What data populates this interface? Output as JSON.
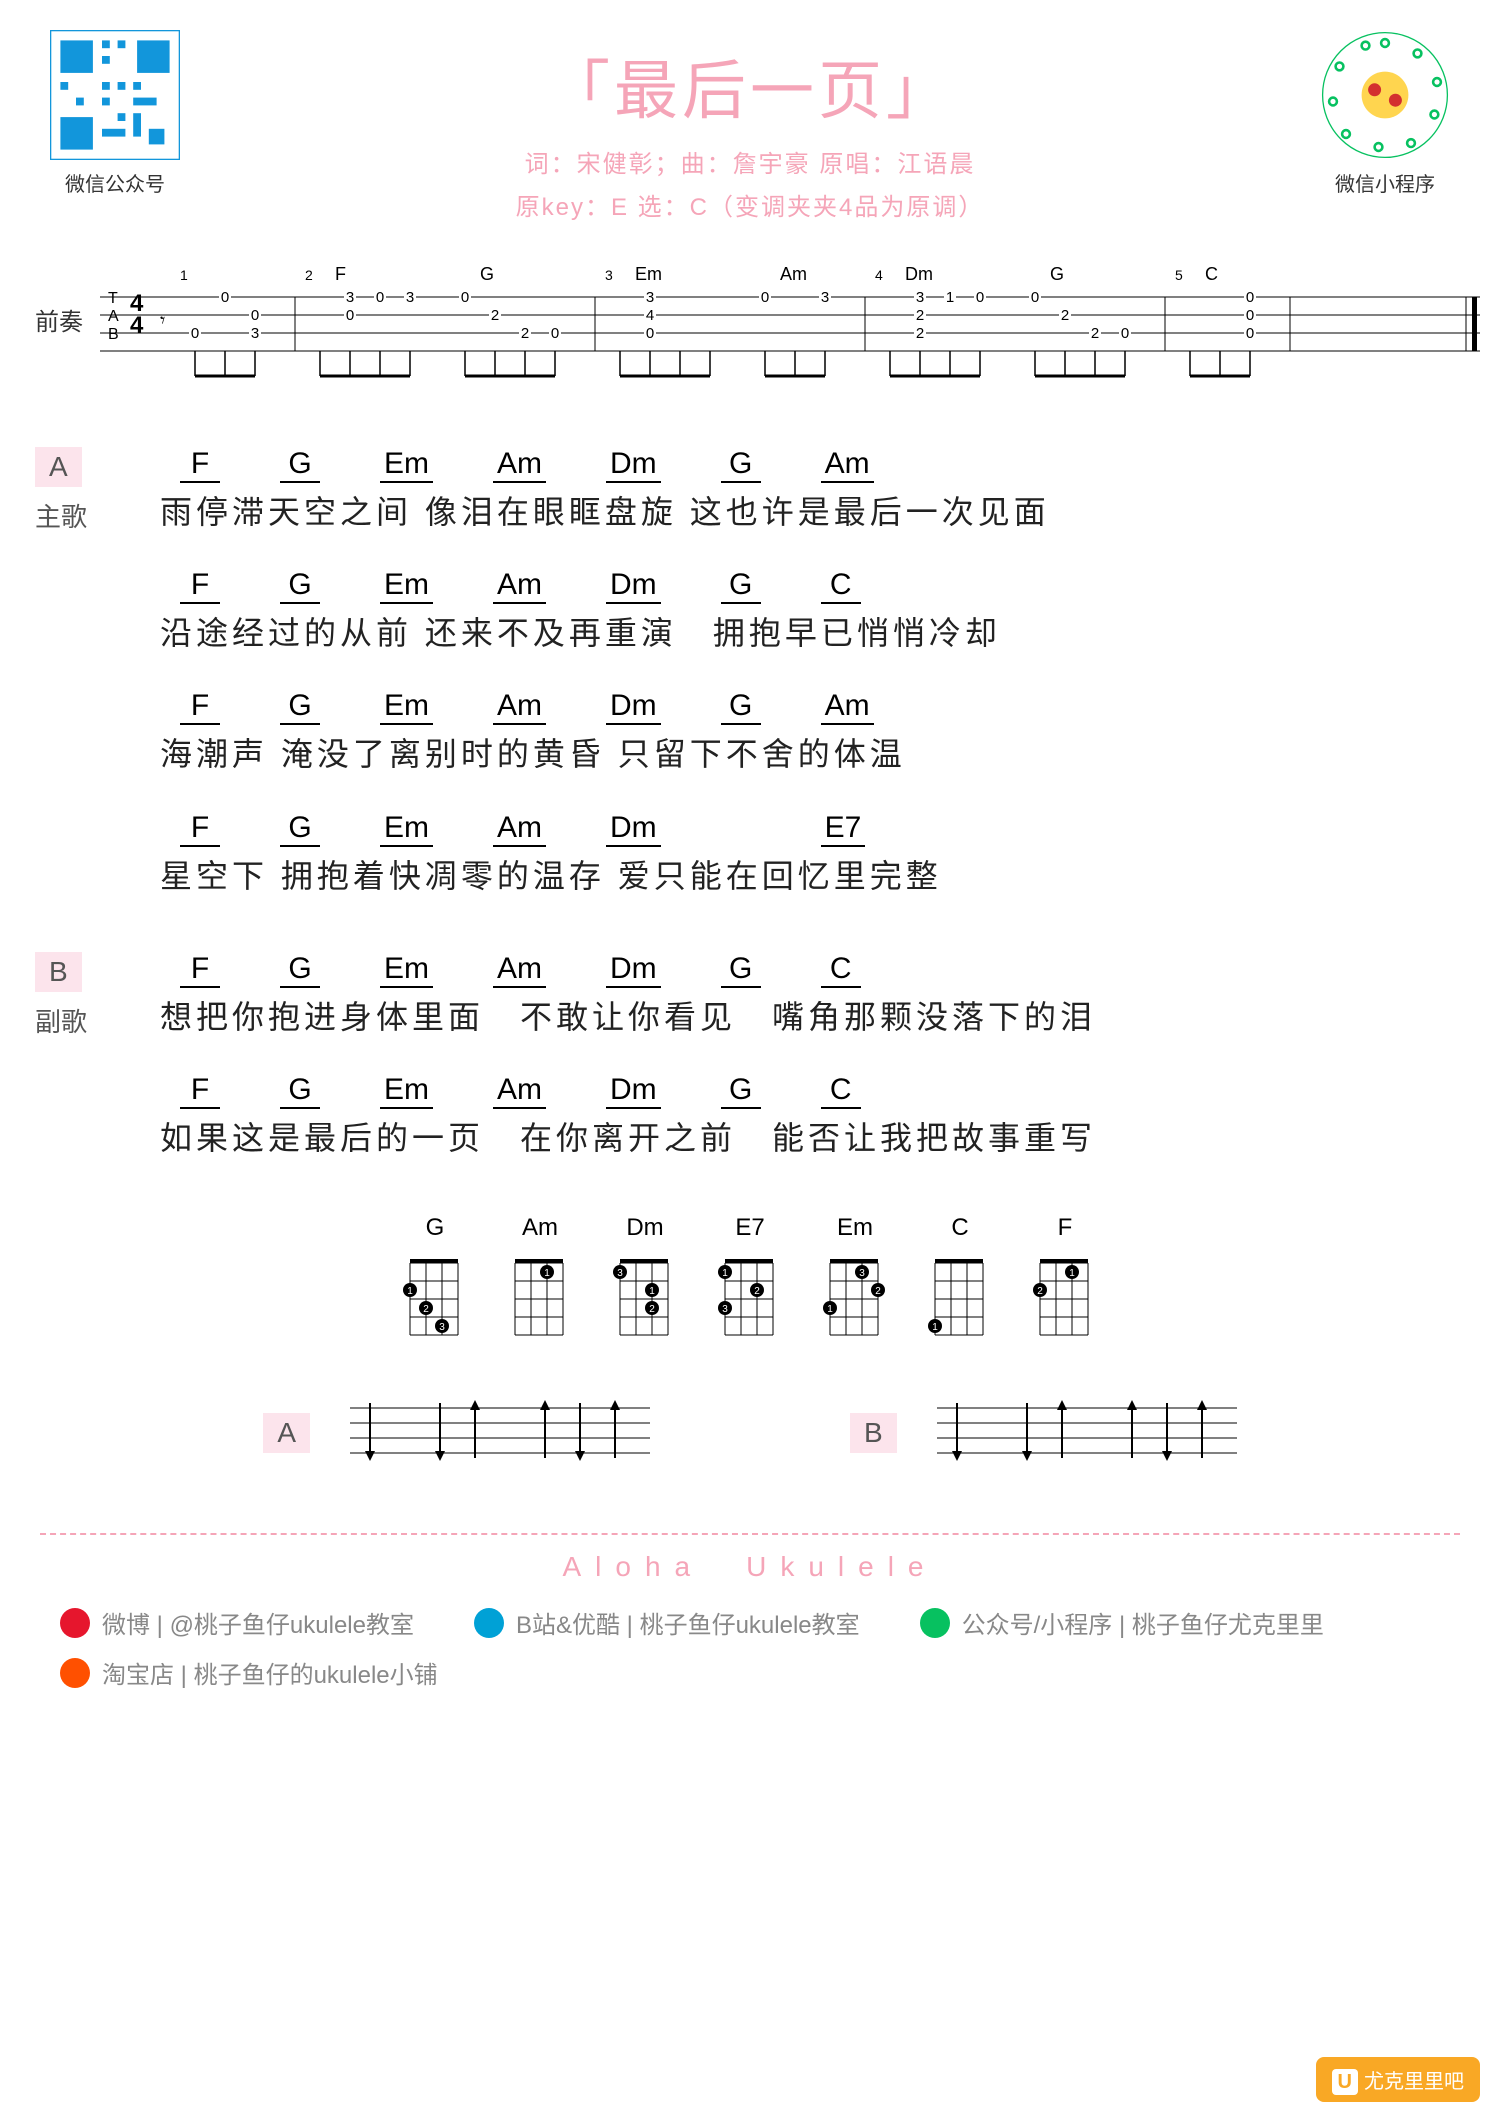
{
  "header": {
    "title": "「最后一页」",
    "credits": "词：宋健彰；曲：詹宇豪 原唱：江语晨",
    "key_info": "原key：E 选：C（变调夹夹4品为原调）",
    "left_qr_label": "微信公众号",
    "right_qr_label": "微信小程序"
  },
  "intro": {
    "label": "前奏",
    "chord_labels": [
      "F",
      "G",
      "Em",
      "Am",
      "Dm",
      "G",
      "C"
    ],
    "measures": [
      {
        "n": "1",
        "frets": [
          [
            "",
            "0",
            ""
          ],
          [
            "",
            "",
            "0"
          ],
          [
            "0",
            "",
            "3"
          ]
        ]
      },
      {
        "n": "2",
        "chord": "F",
        "frets": [
          [
            "",
            "3",
            "0",
            "3"
          ],
          [
            "",
            "0",
            "",
            ""
          ],
          [
            "",
            "",
            "",
            ""
          ]
        ]
      },
      {
        "n": "",
        "chord": "G",
        "frets": [
          [
            "0",
            "",
            "",
            ""
          ],
          [
            "",
            "2",
            "",
            ""
          ],
          [
            "",
            "",
            "2",
            "0"
          ]
        ]
      },
      {
        "n": "3",
        "chord": "Em",
        "frets": [
          [
            "",
            "3",
            "",
            ""
          ],
          [
            "",
            "4",
            "",
            ""
          ],
          [
            "",
            "0",
            "",
            ""
          ]
        ]
      },
      {
        "n": "",
        "chord": "Am",
        "frets": [
          [
            "0",
            "",
            "3"
          ],
          [
            "",
            "",
            ""
          ],
          [
            "",
            "",
            ""
          ]
        ]
      },
      {
        "n": "4",
        "chord": "Dm",
        "frets": [
          [
            "",
            "3",
            "1",
            "0"
          ],
          [
            "",
            "2",
            "",
            ""
          ],
          [
            "",
            "2",
            "",
            ""
          ]
        ]
      },
      {
        "n": "",
        "chord": "G",
        "frets": [
          [
            "0",
            "",
            "",
            ""
          ],
          [
            "",
            "2",
            "",
            ""
          ],
          [
            "",
            "",
            "2",
            "0"
          ]
        ]
      },
      {
        "n": "5",
        "chord": "C",
        "frets": [
          [
            "",
            "",
            "0"
          ],
          [
            "",
            "",
            "0"
          ],
          [
            "",
            "",
            "0"
          ]
        ]
      }
    ]
  },
  "sections": [
    {
      "tag": "A",
      "label": "主歌",
      "lines": [
        {
          "chords": [
            "F",
            "G",
            "Em",
            "Am",
            "Dm",
            "G",
            "Am"
          ],
          "lyric": "雨停滞天空之间 像泪在眼眶盘旋 这也许是最后一次见面"
        },
        {
          "chords": [
            "F",
            "G",
            "Em",
            "Am",
            "Dm",
            "G",
            "C"
          ],
          "lyric": "沿途经过的从前 还来不及再重演　拥抱早已悄悄冷却"
        },
        {
          "chords": [
            "F",
            "G",
            "Em",
            "Am",
            "Dm",
            "G",
            "Am"
          ],
          "lyric": "海潮声 淹没了离别时的黄昏 只留下不舍的体温"
        },
        {
          "chords": [
            "F",
            "G",
            "Em",
            "Am",
            "Dm",
            "",
            "E7"
          ],
          "lyric": "星空下 拥抱着快凋零的温存 爱只能在回忆里完整"
        }
      ]
    },
    {
      "tag": "B",
      "label": "副歌",
      "lines": [
        {
          "chords": [
            "F",
            "G",
            "Em",
            "Am",
            "Dm",
            "G",
            "C"
          ],
          "lyric": "想把你抱进身体里面　不敢让你看见　嘴角那颗没落下的泪"
        },
        {
          "chords": [
            "F",
            "G",
            "Em",
            "Am",
            "Dm",
            "G",
            "C"
          ],
          "lyric": "如果这是最后的一页　在你离开之前　能否让我把故事重写"
        }
      ]
    }
  ],
  "chord_diagrams": [
    {
      "name": "G",
      "dots": [
        [
          1,
          0
        ],
        [
          2,
          1
        ],
        [
          3,
          2
        ]
      ]
    },
    {
      "name": "Am",
      "dots": [
        [
          0,
          2
        ]
      ]
    },
    {
      "name": "Dm",
      "dots": [
        [
          1,
          2
        ],
        [
          2,
          2
        ],
        [
          0,
          0
        ]
      ]
    },
    {
      "name": "E7",
      "dots": [
        [
          0,
          0
        ],
        [
          1,
          2
        ],
        [
          2,
          0
        ]
      ]
    },
    {
      "name": "Em",
      "dots": [
        [
          2,
          0
        ],
        [
          1,
          3
        ],
        [
          0,
          2
        ]
      ]
    },
    {
      "name": "C",
      "dots": [
        [
          3,
          0
        ]
      ]
    },
    {
      "name": "F",
      "dots": [
        [
          0,
          2
        ],
        [
          1,
          0
        ]
      ]
    }
  ],
  "strum": {
    "patterns": [
      {
        "tag": "A",
        "arrows": [
          "d",
          "",
          "d",
          "u",
          "",
          "u",
          "d",
          "u"
        ]
      },
      {
        "tag": "B",
        "arrows": [
          "d",
          "",
          "d",
          "u",
          "",
          "u",
          "d",
          "u"
        ]
      }
    ]
  },
  "footer": {
    "brand": "Aloha　Ukulele",
    "links": [
      {
        "icon": "#e6162d",
        "text": "微博 | @桃子鱼仔ukulele教室"
      },
      {
        "icon": "#00a1d6",
        "text": "B站&优酷 | 桃子鱼仔ukulele教室"
      },
      {
        "icon": "#07c160",
        "text": "公众号/小程序 | 桃子鱼仔尤克里里"
      },
      {
        "icon": "#ff5000",
        "text": "淘宝店 | 桃子鱼仔的ukulele小铺"
      }
    ],
    "corner_wm": "尤克里里吧"
  },
  "colors": {
    "pink": "#f5a5b8",
    "tag_bg": "#fce4ec",
    "text": "#222222",
    "grey": "#888888"
  }
}
